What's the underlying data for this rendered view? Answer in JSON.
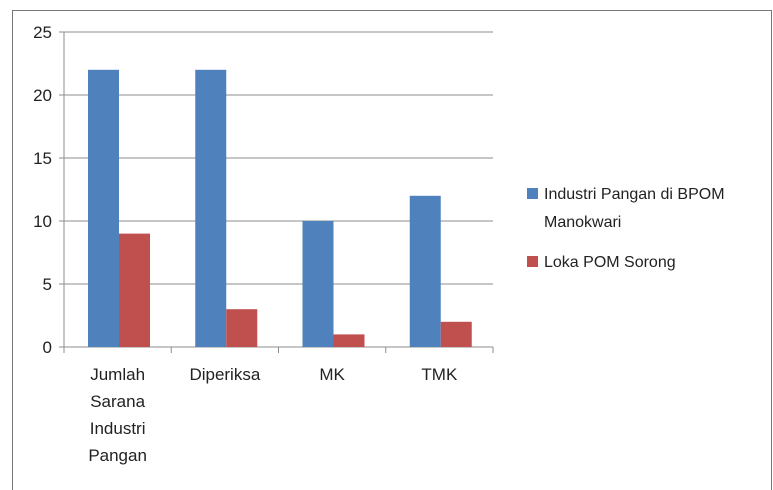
{
  "chart_data": {
    "type": "bar",
    "categories": [
      [
        "Jumlah",
        "Sarana",
        "Industri",
        "Pangan"
      ],
      [
        "Diperiksa"
      ],
      [
        "MK"
      ],
      [
        "TMK"
      ]
    ],
    "series": [
      {
        "name": "Industri Pangan di BPOM Manokwari",
        "legend_lines": [
          "Industri Pangan di BPOM",
          "Manokwari"
        ],
        "values": [
          22,
          22,
          10,
          12
        ],
        "color": "#4f81bd"
      },
      {
        "name": "Loka POM Sorong",
        "legend_lines": [
          "Loka POM Sorong"
        ],
        "values": [
          9,
          3,
          1,
          2
        ],
        "color": "#c0504d"
      }
    ],
    "ylim": [
      0,
      25
    ],
    "yticks": [
      0,
      5,
      10,
      15,
      20,
      25
    ],
    "grid": true,
    "legend_position": "right",
    "title": "",
    "xlabel": "",
    "ylabel": ""
  }
}
